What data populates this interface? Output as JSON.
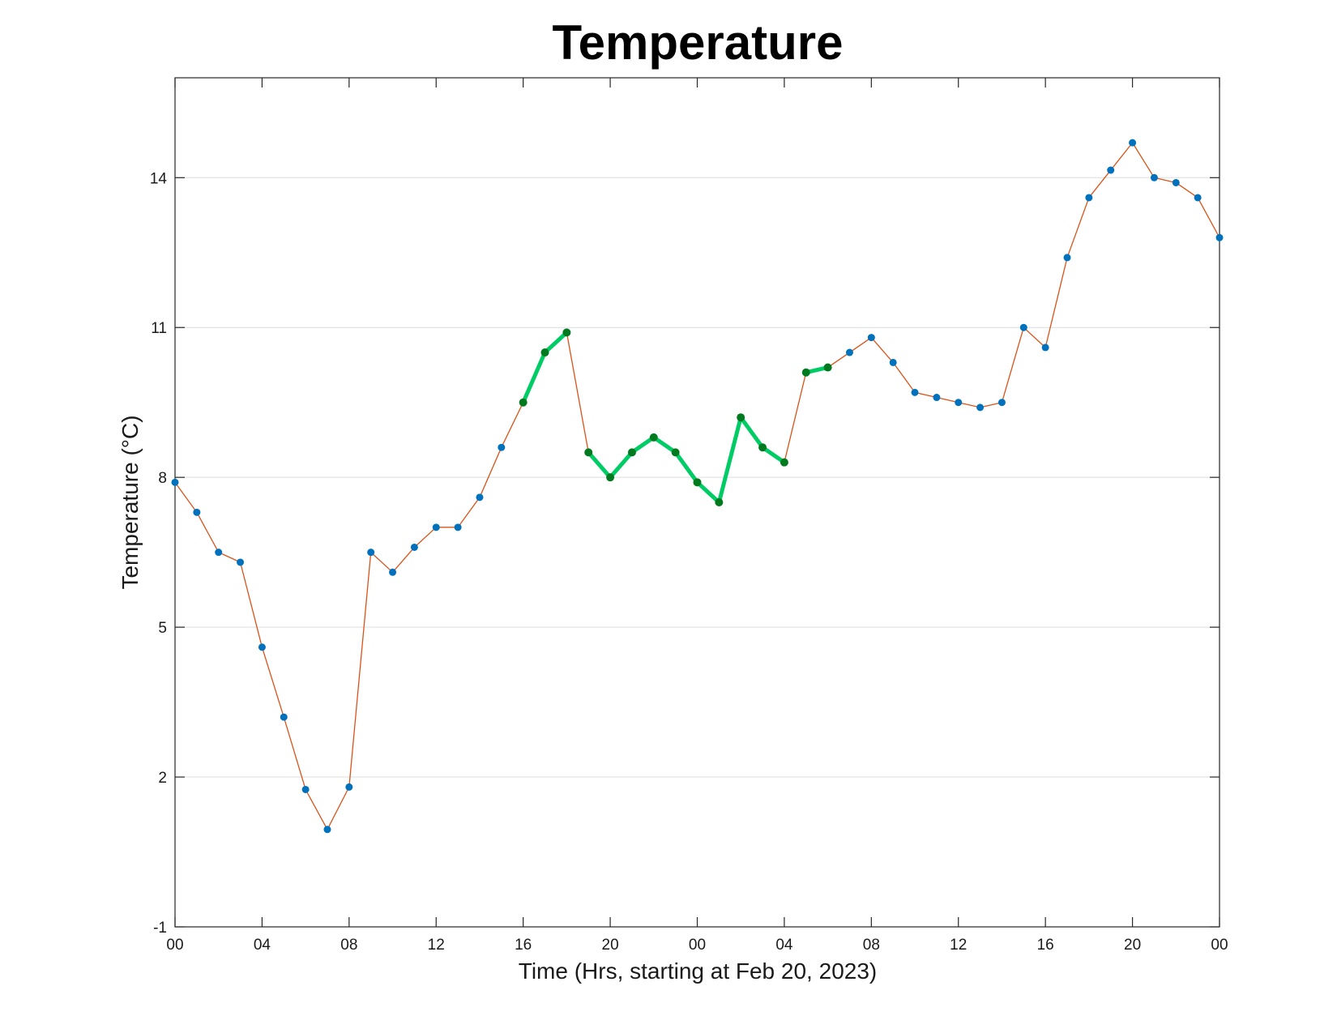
{
  "chart_data": {
    "type": "line",
    "title": "Temperature",
    "xlabel": "Time (Hrs, starting at Feb 20, 2023)",
    "ylabel": "Temperature (°C)",
    "x_unit": "hours",
    "xlim": [
      0,
      48
    ],
    "ylim": [
      -1,
      16
    ],
    "yticks": [
      -1,
      2,
      5,
      8,
      11,
      14
    ],
    "xticks": [
      0,
      4,
      8,
      12,
      16,
      20,
      24,
      28,
      32,
      36,
      40,
      44,
      48
    ],
    "xtick_labels": [
      "00",
      "04",
      "08",
      "12",
      "16",
      "20",
      "00",
      "04",
      "08",
      "12",
      "16",
      "20",
      "00"
    ],
    "grid": "horizontal",
    "x": [
      0,
      1,
      2,
      3,
      4,
      5,
      6,
      7,
      8,
      9,
      10,
      11,
      12,
      13,
      14,
      15,
      16,
      17,
      18,
      19,
      20,
      21,
      22,
      23,
      24,
      25,
      26,
      27,
      28,
      29,
      30,
      31,
      32,
      33,
      34,
      35,
      36,
      37,
      38,
      39,
      40,
      41,
      42,
      43,
      44,
      45,
      46,
      47,
      48
    ],
    "series": [
      {
        "values": [
          7.9,
          7.3,
          6.5,
          6.3,
          4.6,
          3.2,
          1.75,
          0.95,
          1.8,
          6.5,
          6.1,
          6.6,
          7.0,
          7.0,
          7.6,
          8.6,
          9.5,
          10.5,
          10.9,
          8.5,
          8.0,
          8.5,
          8.8,
          8.5,
          7.9,
          7.5,
          9.2,
          8.6,
          8.3,
          10.1,
          10.2,
          10.5,
          10.8,
          10.3,
          9.7,
          9.6,
          9.5,
          9.4,
          9.5,
          11.0,
          10.6,
          12.4,
          13.6,
          14.15,
          14.7,
          14.0,
          13.9,
          13.6,
          12.8
        ],
        "color": "#d95319",
        "marker_color": "#0072bd"
      }
    ],
    "highlight_segments": [
      {
        "from_x": 16,
        "to_x": 18,
        "color": "#00cc66",
        "marker_color": "#007a1f"
      },
      {
        "from_x": 19,
        "to_x": 28,
        "color": "#00cc66",
        "marker_color": "#007a1f"
      },
      {
        "from_x": 29,
        "to_x": 30,
        "color": "#00cc66",
        "marker_color": "#007a1f"
      }
    ]
  }
}
